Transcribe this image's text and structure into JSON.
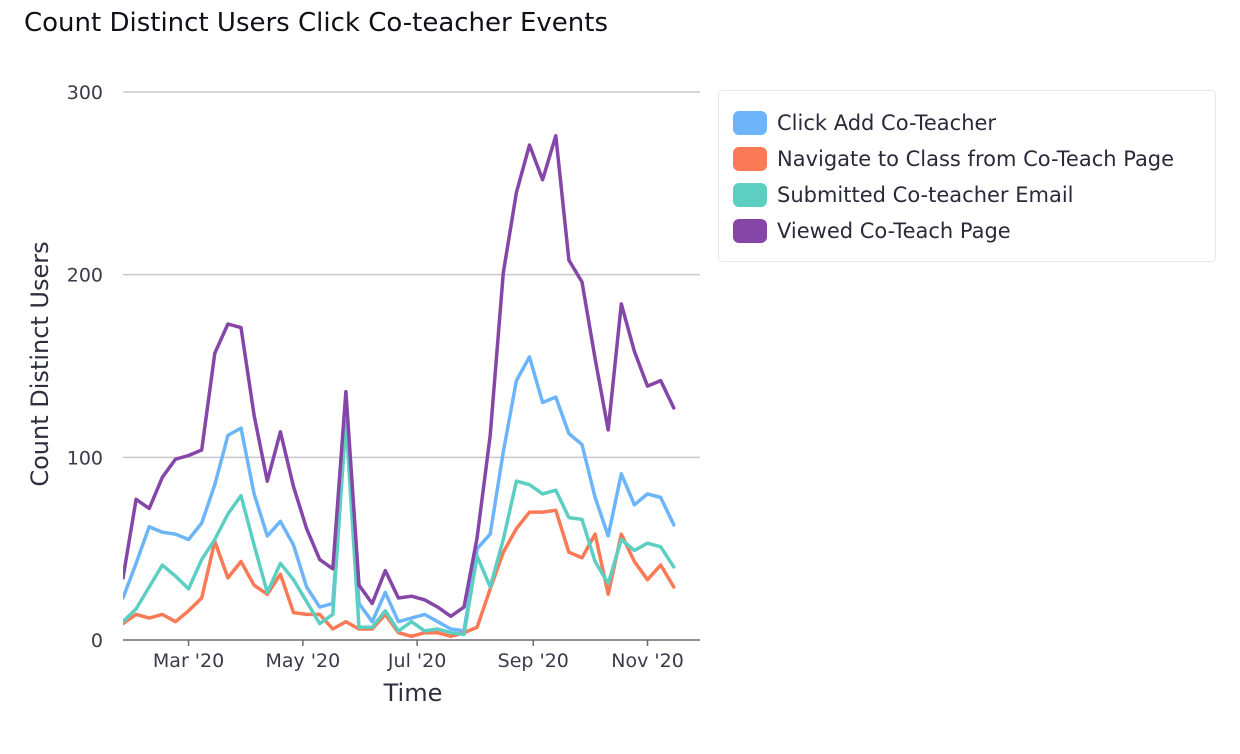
{
  "chart_data": {
    "type": "line",
    "title": "Count Distinct Users Click Co-teacher Events",
    "xlabel": "Time",
    "ylabel": "Count Distinct Users",
    "ylim": [
      0,
      300
    ],
    "yticks": [
      0,
      100,
      200,
      300
    ],
    "yticklabels": [
      "0",
      "100",
      "200",
      "300"
    ],
    "xlim": [
      "2020-01-26",
      "2020-11-29"
    ],
    "xticks": [
      "2020-03-01",
      "2020-05-01",
      "2020-07-01",
      "2020-09-01",
      "2020-11-01"
    ],
    "xticklabels": [
      "Mar '20",
      "May '20",
      "Jul '20",
      "Sep '20",
      "Nov '20"
    ],
    "grid": true,
    "legend_position": "right",
    "x": [
      "2020-01-26",
      "2020-02-02",
      "2020-02-09",
      "2020-02-16",
      "2020-02-23",
      "2020-03-01",
      "2020-03-08",
      "2020-03-15",
      "2020-03-22",
      "2020-03-29",
      "2020-04-05",
      "2020-04-12",
      "2020-04-19",
      "2020-04-26",
      "2020-05-03",
      "2020-05-10",
      "2020-05-17",
      "2020-05-24",
      "2020-05-31",
      "2020-06-07",
      "2020-06-14",
      "2020-06-21",
      "2020-06-28",
      "2020-07-05",
      "2020-07-12",
      "2020-07-19",
      "2020-07-26",
      "2020-08-02",
      "2020-08-09",
      "2020-08-16",
      "2020-08-23",
      "2020-08-30",
      "2020-09-06",
      "2020-09-13",
      "2020-09-20",
      "2020-09-27",
      "2020-10-04",
      "2020-10-11",
      "2020-10-18",
      "2020-10-25",
      "2020-11-01",
      "2020-11-08",
      "2020-11-15",
      "2020-11-22",
      "2020-11-29"
    ],
    "series": [
      {
        "name": "Click Add Co-Teacher",
        "color": "#6db5fb",
        "values": [
          23,
          42,
          62,
          59,
          58,
          55,
          64,
          85,
          112,
          116,
          80,
          57,
          65,
          52,
          29,
          18,
          20,
          120,
          20,
          10,
          26,
          10,
          12,
          14,
          10,
          6,
          5,
          50,
          58,
          103,
          142,
          155,
          130,
          133,
          113,
          107,
          78,
          57,
          91,
          74,
          80,
          78,
          63,
          null,
          null
        ]
      },
      {
        "name": "Navigate to Class from Co-Teach Page",
        "color": "#fa7a55",
        "values": [
          9,
          14,
          12,
          14,
          10,
          16,
          23,
          54,
          34,
          43,
          30,
          25,
          36,
          15,
          14,
          14,
          6,
          10,
          6,
          6,
          14,
          4,
          2,
          4,
          4,
          2,
          4,
          7,
          28,
          48,
          61,
          70,
          70,
          71,
          48,
          45,
          58,
          25,
          58,
          43,
          33,
          41,
          29,
          null,
          null
        ]
      },
      {
        "name": "Submitted Co-teacher Email",
        "color": "#5ccfc2",
        "values": [
          10,
          17,
          29,
          41,
          35,
          28,
          44,
          55,
          69,
          79,
          52,
          26,
          42,
          33,
          21,
          9,
          14,
          120,
          7,
          7,
          16,
          5,
          10,
          5,
          6,
          4,
          3,
          46,
          29,
          55,
          87,
          85,
          80,
          82,
          67,
          66,
          43,
          31,
          55,
          49,
          53,
          51,
          40,
          null,
          null
        ]
      },
      {
        "name": "Viewed Co-Teach Page",
        "color": "#8546a8",
        "values": [
          34,
          77,
          72,
          89,
          99,
          101,
          104,
          157,
          173,
          171,
          123,
          87,
          114,
          84,
          61,
          44,
          39,
          136,
          30,
          20,
          38,
          23,
          24,
          22,
          18,
          13,
          18,
          56,
          112,
          201,
          245,
          271,
          252,
          276,
          208,
          196,
          154,
          115,
          184,
          158,
          139,
          142,
          127,
          null,
          null
        ]
      }
    ]
  }
}
